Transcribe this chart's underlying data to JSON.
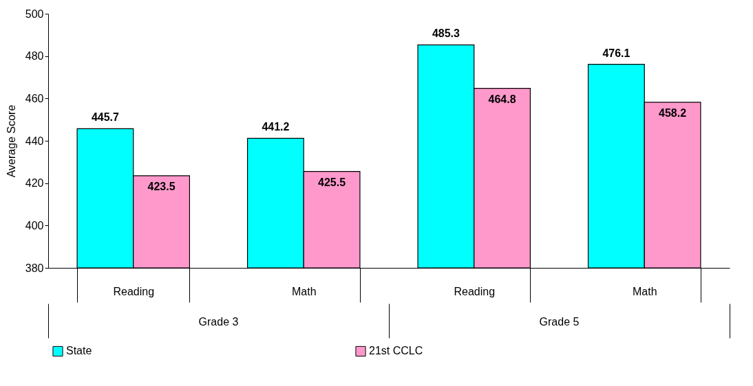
{
  "chart_data": {
    "type": "bar",
    "categories": [
      "Reading",
      "Math",
      "Reading",
      "Math"
    ],
    "annotations": [
      "Grade 3",
      "Grade 5"
    ],
    "ylabel": "Average Score",
    "series": [
      {
        "name": "State",
        "color": "#00ffff",
        "values": [
          445.7,
          441.2,
          485.3,
          476.1
        ]
      },
      {
        "name": "21st CCLC",
        "color": "#ff99cc",
        "values": [
          423.5,
          425.5,
          464.8,
          458.2
        ]
      }
    ],
    "ylim": [
      380,
      500
    ],
    "yticks": [
      380,
      400,
      420,
      440,
      460,
      480,
      500
    ],
    "data_labels": true,
    "grid": false,
    "legend": "bottom"
  }
}
